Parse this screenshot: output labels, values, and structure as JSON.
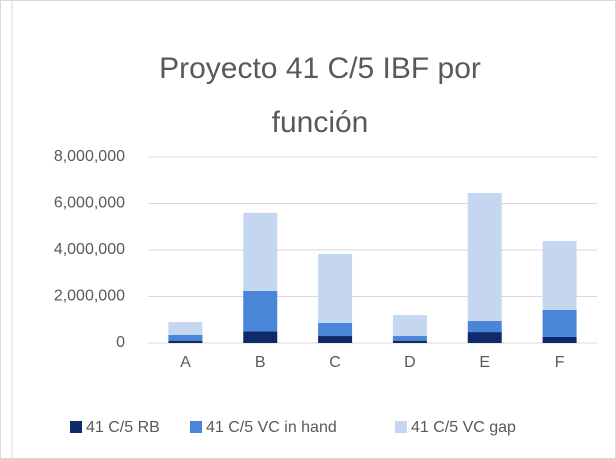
{
  "chart_data": {
    "type": "stacked-bar",
    "title": "Proyecto 41 C/5 IBF por función",
    "categories": [
      "A",
      "B",
      "C",
      "D",
      "E",
      "F"
    ],
    "series": [
      {
        "name": "41 C/5 RB",
        "color": "#0f2a6b",
        "values": [
          100000,
          500000,
          300000,
          100000,
          470000,
          260000
        ]
      },
      {
        "name": "41 C/5 VC in hand",
        "color": "#4a86d8",
        "values": [
          250000,
          1740000,
          560000,
          200000,
          480000,
          1160000
        ]
      },
      {
        "name": "41 C/5 VC gap",
        "color": "#c5d7f0",
        "values": [
          550000,
          3360000,
          2970000,
          900000,
          5500000,
          2970000
        ]
      }
    ],
    "ylim": [
      0,
      8000000
    ],
    "yticks": [
      0,
      {
        "value": 2000000,
        "label": "2,000,000"
      },
      {
        "value": 4000000,
        "label": "4,000,000"
      },
      {
        "value": 6000000,
        "label": "6,000,000"
      },
      {
        "value": 8000000,
        "label": "8,000,000"
      }
    ],
    "grid": true,
    "legend": "bottom"
  }
}
